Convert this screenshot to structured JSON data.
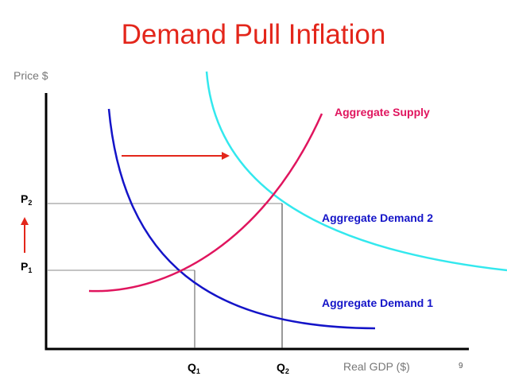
{
  "title": "Demand Pull Inflation",
  "axes": {
    "y_label": "Price $",
    "x_label": "Real GDP ($)"
  },
  "curves": {
    "aggregate_supply": {
      "label": "Aggregate Supply",
      "color": "#e0155e"
    },
    "aggregate_demand_1": {
      "label": "Aggregate Demand 1",
      "color": "#1414c8"
    },
    "aggregate_demand_2": {
      "label": "Aggregate Demand 2",
      "color": "#1414c8",
      "curve_color": "#33e8ee"
    }
  },
  "prices": {
    "p1": {
      "base": "P",
      "sub": "1"
    },
    "p2": {
      "base": "P",
      "sub": "2"
    }
  },
  "quantities": {
    "q1": {
      "base": "Q",
      "sub": "1"
    },
    "q2": {
      "base": "Q",
      "sub": "2"
    }
  },
  "arrow_color": "#e3261b",
  "page_number": "9"
}
